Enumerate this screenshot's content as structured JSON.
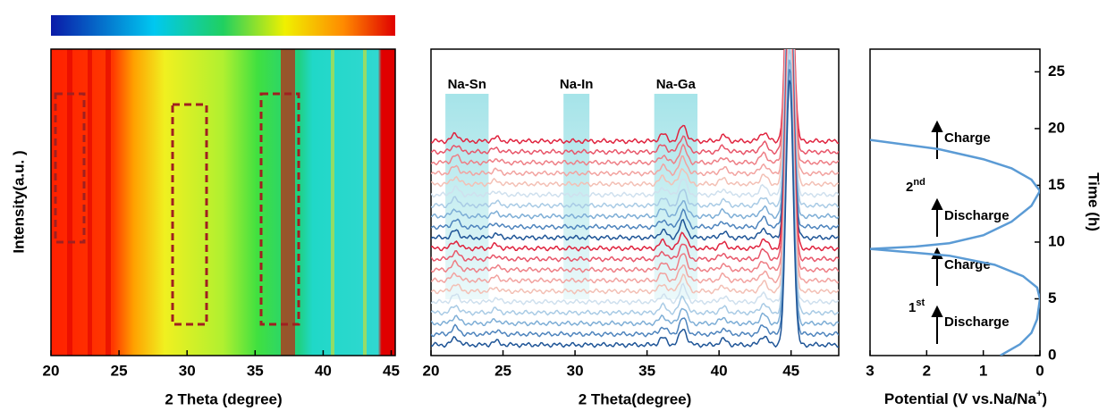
{
  "chart_data": [
    {
      "type": "heatmap",
      "xlabel": "2 Theta (degree)",
      "ylabel": "Intensity(a.u. )",
      "xlim": [
        20,
        45
      ],
      "xticks": [
        20,
        25,
        30,
        35,
        40,
        45
      ]
    },
    {
      "type": "xrd",
      "xlabel": "2 Theta(degree)",
      "xlim": [
        20,
        48
      ],
      "xticks": [
        20,
        25,
        30,
        35,
        40,
        45
      ],
      "regions": [
        {
          "label": "Na-Sn",
          "range": [
            21,
            24
          ]
        },
        {
          "label": "Na-In",
          "range": [
            29.2,
            31
          ]
        },
        {
          "label": "Na-Ga",
          "range": [
            35.5,
            38.5
          ]
        }
      ],
      "peaks": [
        21.7,
        24.5,
        36.1,
        37.5,
        40.3,
        43.1,
        44.9
      ],
      "peak_heights": [
        8,
        4,
        8,
        18,
        6,
        10,
        300
      ],
      "pattern_colors": [
        "#e0243f",
        "#e8566a",
        "#ee7f86",
        "#f2a3a0",
        "#f3c0b5",
        "#cfe0ee",
        "#a9cbe5",
        "#7eaed6",
        "#4e84bd",
        "#1f5597",
        "#e0243f",
        "#e8566a",
        "#ee7f86",
        "#f2a3a0",
        "#f3c0b5",
        "#cfe0ee",
        "#a9cbe5",
        "#7eaed6",
        "#4e84bd",
        "#1f5597"
      ]
    },
    {
      "type": "line",
      "xlabel": {
        "text": "Potential (V vs.Na/Na",
        "sup": "+",
        "end": ")"
      },
      "ylabel": "Time (h)",
      "xlim": [
        3,
        0
      ],
      "xticks": [
        3,
        2,
        1,
        0
      ],
      "ylim": [
        0,
        27
      ],
      "yticks": [
        0,
        5,
        10,
        15,
        20,
        25
      ],
      "series": [
        {
          "color": "#5b9bd5",
          "x": [
            0.7,
            0.35,
            0.15,
            0.05,
            0,
            0.05,
            0.3,
            0.8,
            1.6,
            3,
            2.2,
            1.6,
            1,
            0.5,
            0.15,
            0,
            0.15,
            0.5,
            1,
            1.8,
            3
          ],
          "y": [
            0,
            1,
            2,
            3.2,
            5,
            6,
            7,
            8,
            8.8,
            9.4,
            9.6,
            9.9,
            10.6,
            11.8,
            13.2,
            14.5,
            15.5,
            16.5,
            17.3,
            18.2,
            19
          ]
        }
      ],
      "annotations": [
        "Charge",
        "2",
        "nd",
        "Discharge",
        "Charge",
        "1",
        "st",
        "Discharge"
      ]
    }
  ]
}
